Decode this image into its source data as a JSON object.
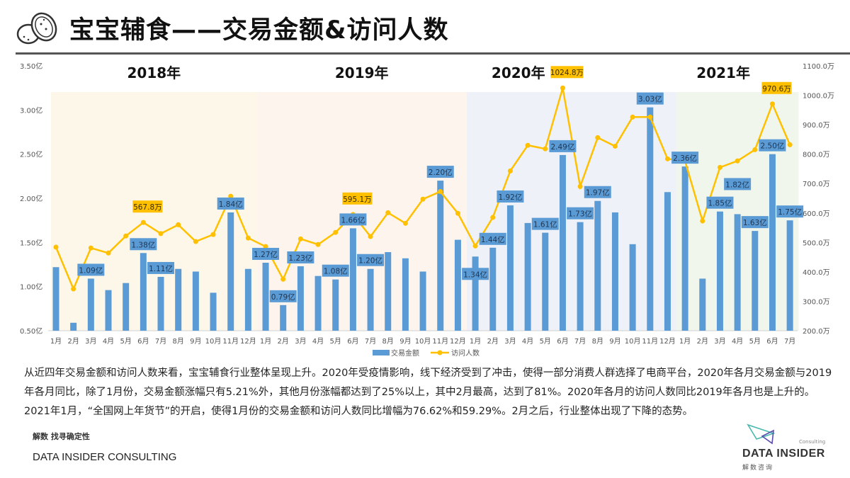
{
  "header": {
    "title": "宝宝辅食——交易金额&访问人数",
    "icon": "cookie-icon"
  },
  "chart_data": {
    "type": "bar+line",
    "title": "",
    "year_labels": [
      "2018年",
      "2019年",
      "2020年",
      "2021年"
    ],
    "categories": [
      "1月",
      "2月",
      "3月",
      "4月",
      "5月",
      "6月",
      "7月",
      "8月",
      "9月",
      "10月",
      "11月",
      "12月",
      "1月",
      "2月",
      "3月",
      "4月",
      "5月",
      "6月",
      "7月",
      "8月",
      "9月",
      "10月",
      "11月",
      "12月",
      "1月",
      "2月",
      "3月",
      "4月",
      "5月",
      "6月",
      "7月",
      "8月",
      "9月",
      "10月",
      "11月",
      "12月",
      "1月",
      "2月",
      "3月",
      "4月",
      "5月",
      "6月",
      "7月"
    ],
    "year_spans": [
      12,
      12,
      12,
      7
    ],
    "y_left": {
      "ticks": [
        "0.50亿",
        "1.00亿",
        "1.50亿",
        "2.00亿",
        "2.50亿",
        "3.00亿",
        "3.50亿"
      ],
      "range": [
        0.5,
        3.5
      ],
      "unit": "亿"
    },
    "y_right": {
      "ticks": [
        "200.0万",
        "300.0万",
        "400.0万",
        "500.0万",
        "600.0万",
        "700.0万",
        "800.0万",
        "900.0万",
        "1000.0万",
        "1100.0万"
      ],
      "range": [
        200,
        1100
      ],
      "unit": "万"
    },
    "series": [
      {
        "name": "交易金额",
        "type": "bar",
        "color": "#5b9bd5",
        "values": [
          1.22,
          0.59,
          1.09,
          0.96,
          1.04,
          1.38,
          1.11,
          1.2,
          1.17,
          0.93,
          1.84,
          1.2,
          1.27,
          0.79,
          1.23,
          1.12,
          1.08,
          1.66,
          1.2,
          1.39,
          1.32,
          1.17,
          2.2,
          1.53,
          1.34,
          1.44,
          1.92,
          1.72,
          1.61,
          2.49,
          1.73,
          1.97,
          1.84,
          1.48,
          3.03,
          2.07,
          2.36,
          1.09,
          1.85,
          1.82,
          1.63,
          2.5,
          1.75
        ],
        "labels": [
          null,
          null,
          "1.09亿",
          null,
          null,
          "1.38亿",
          "1.11亿",
          null,
          null,
          null,
          "1.84亿",
          null,
          "1.27亿",
          "0.79亿",
          "1.23亿",
          null,
          "1.08亿",
          "1.66亿",
          "1.20亿",
          null,
          null,
          null,
          "2.20亿",
          null,
          "1.34亿",
          "1.44亿",
          "1.92亿",
          null,
          "1.61亿",
          "2.49亿",
          "1.73亿",
          "1.97亿",
          null,
          null,
          "3.03亿",
          null,
          "2.36亿",
          null,
          "1.85亿",
          "1.82亿",
          "1.63亿",
          "2.50亿",
          "1.75亿"
        ]
      },
      {
        "name": "访问人数",
        "type": "line",
        "color": "#ffc000",
        "values": [
          484,
          342,
          481,
          464,
          522,
          567.8,
          530,
          560,
          503,
          527,
          657,
          515,
          486,
          375,
          512,
          493,
          534,
          595.1,
          520,
          601,
          565,
          647,
          673,
          599,
          488,
          585,
          743,
          830,
          818,
          1024.8,
          690,
          856,
          827,
          926,
          926,
          784,
          777,
          573,
          755,
          777,
          815,
          970.6,
          832
        ],
        "labels": [
          null,
          null,
          null,
          null,
          null,
          "567.8万",
          null,
          null,
          null,
          null,
          null,
          null,
          null,
          null,
          null,
          null,
          null,
          "595.1万",
          null,
          null,
          null,
          null,
          null,
          null,
          null,
          null,
          null,
          null,
          null,
          "1024.8万",
          null,
          null,
          null,
          null,
          null,
          null,
          null,
          null,
          null,
          null,
          null,
          "970.6万",
          null
        ]
      }
    ],
    "year_band_colors": [
      "#fdf7e9",
      "#fdf4ee",
      "#eef1f7",
      "#f1f6ec"
    ],
    "legend_position": "bottom",
    "grid": false
  },
  "description": "从近四年交易金额和访问人数来看，宝宝辅食行业整体呈现上升。2020年受疫情影响，线下经济受到了冲击，使得一部分消费人群选择了电商平台，2020年各月交易金额与2019年各月同比，除了1月份，交易金额涨幅只有5.21%外，其他月份涨幅都达到了25%以上，其中2月最高，达到了81%。2020年各月的访问人数同比2019年各月也是上升的。2021年1月，“全国网上年货节”的开启，使得1月份的交易金额和访问人数同比增幅为76.62%和59.29%。2月之后，行业整体出现了下降的态势。",
  "footer": {
    "slogan": "解数 找寻确定性",
    "company": "DATA INSIDER CONSULTING",
    "brand_name": "DATA INSIDER",
    "brand_cn": "解数咨询",
    "brand_sub": "Consulting"
  }
}
